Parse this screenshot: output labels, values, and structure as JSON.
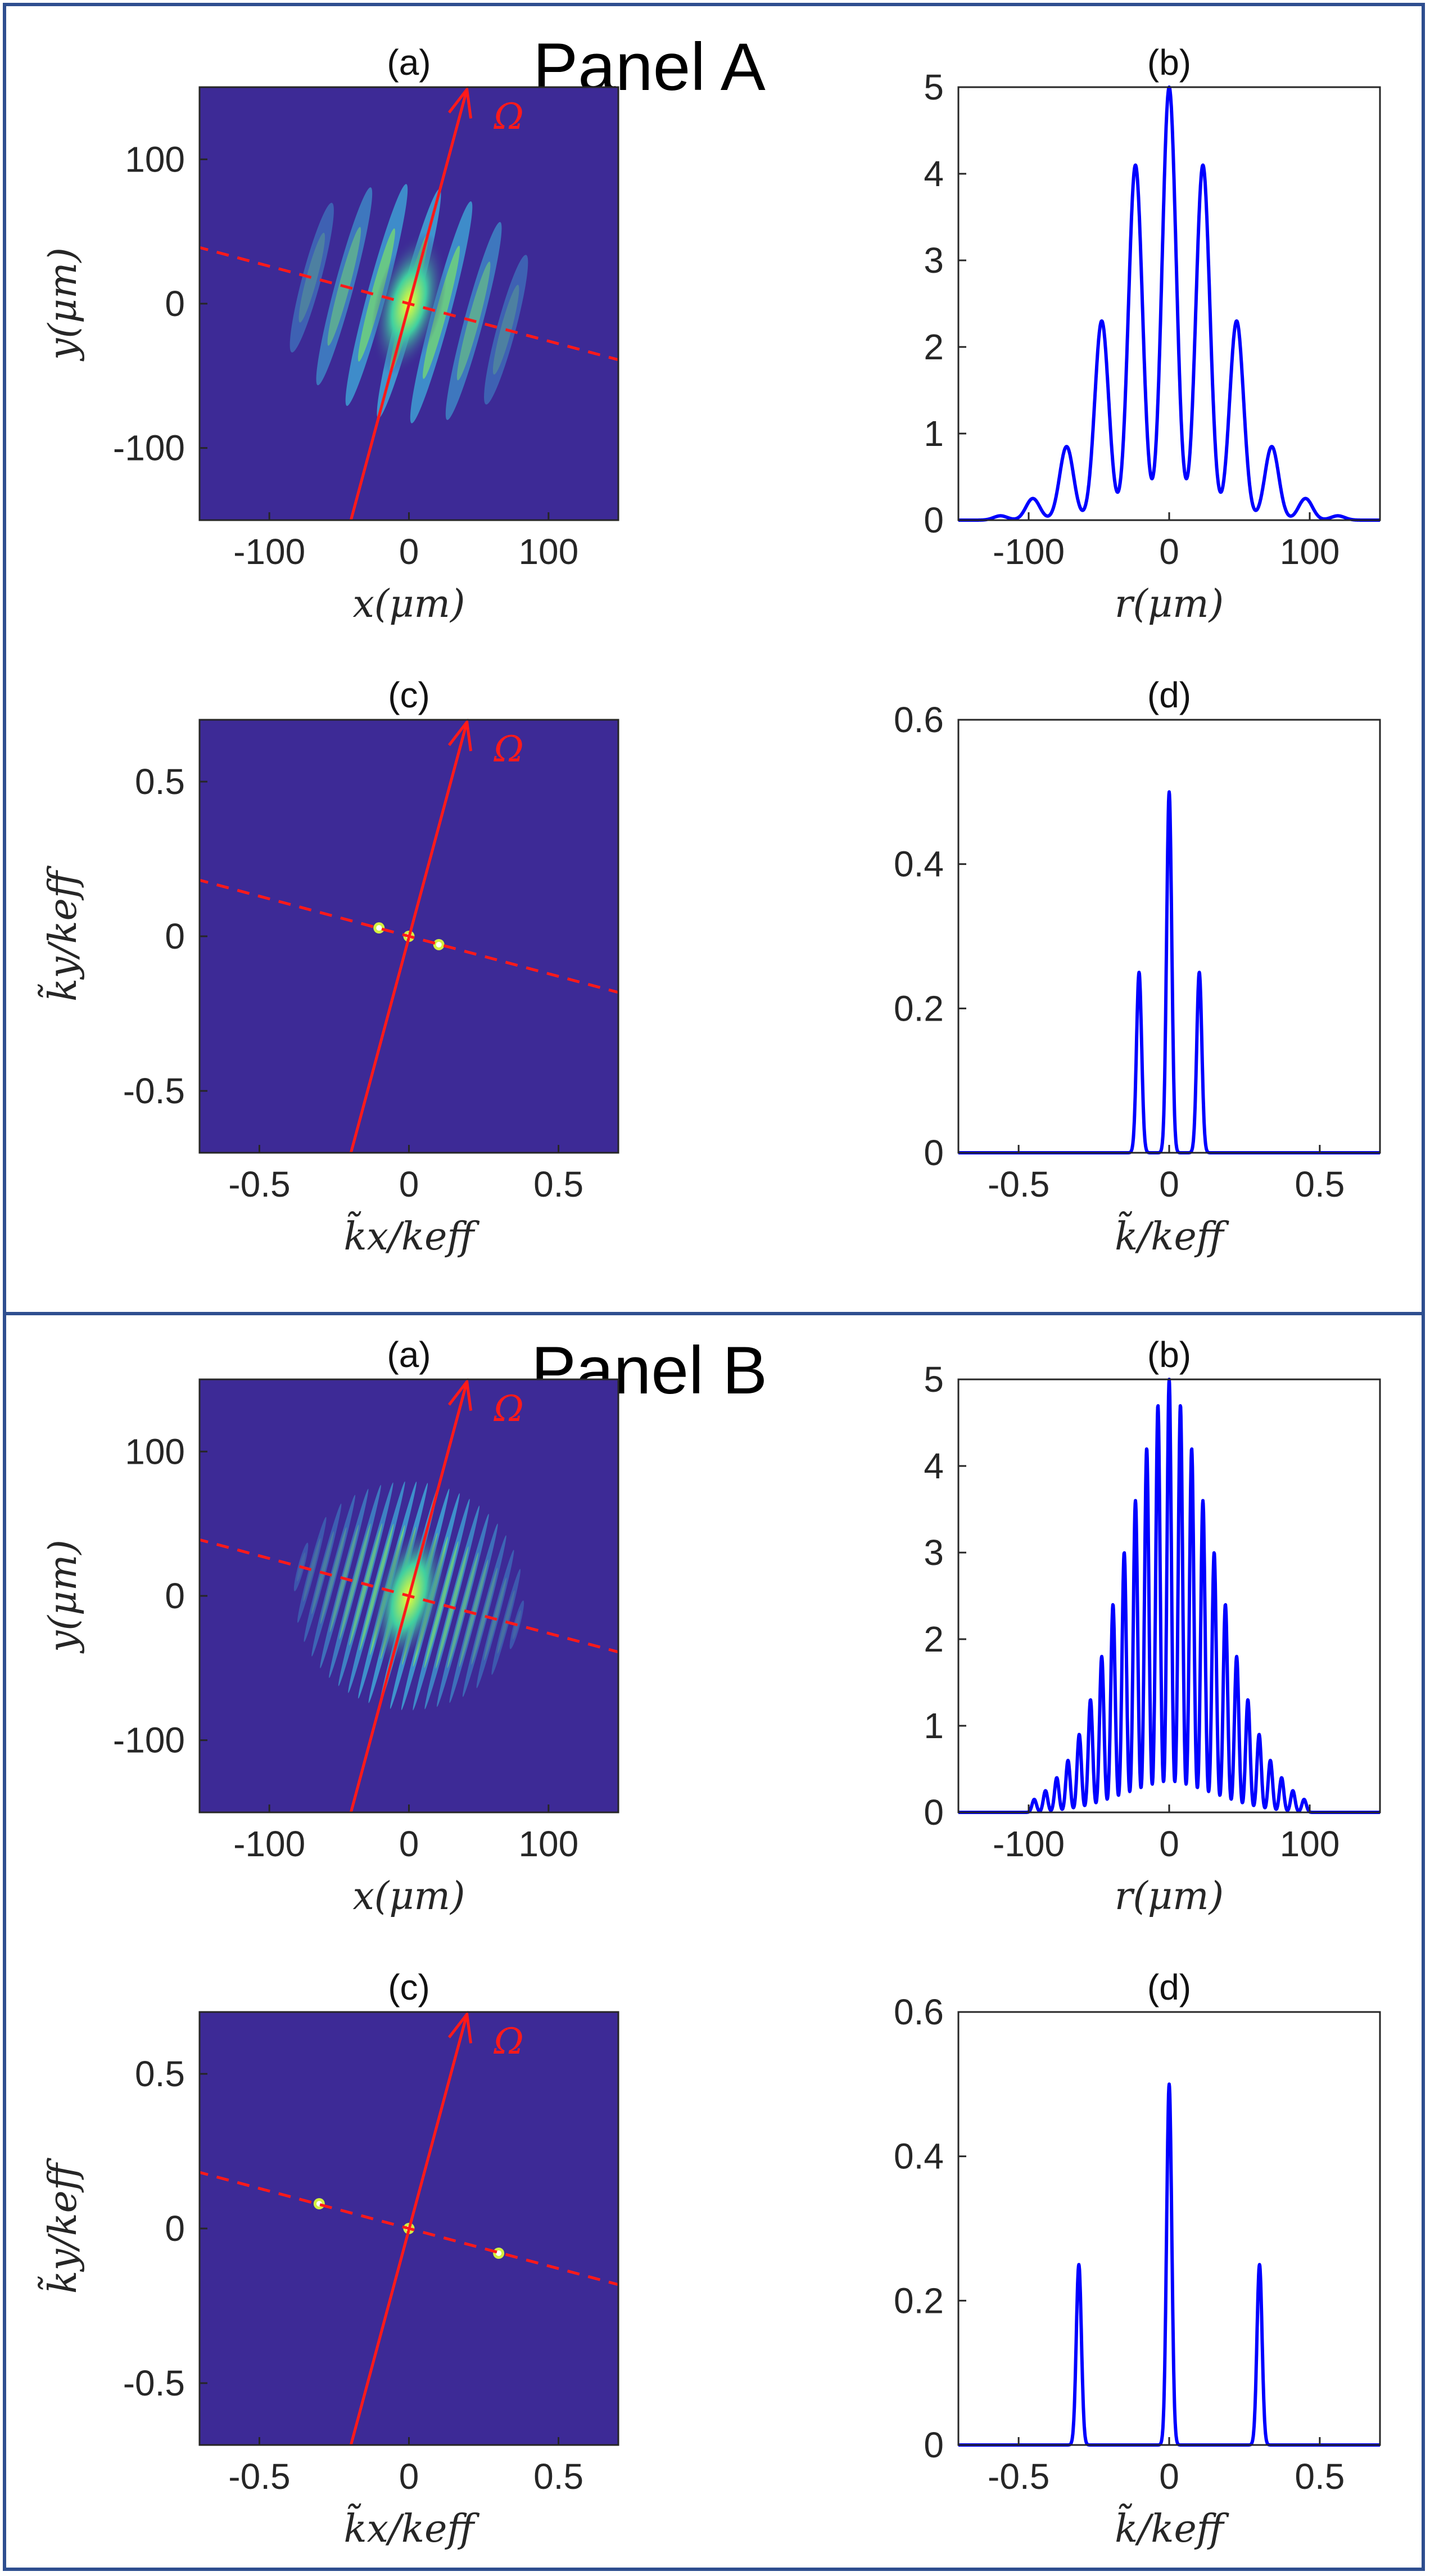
{
  "colors": {
    "frame": "#2E4E8F",
    "map_background": "#3D2A96",
    "line": "#0000FF",
    "annotation": "#FF1A1A"
  },
  "figure": {
    "panels": [
      {
        "title": "Panel A",
        "rows": [
          {
            "map": {
              "title": "(a)",
              "xlabel": "x(μm)",
              "ylabel": "y(μm)",
              "xlim": [
                -150,
                150
              ],
              "ylim": [
                -150,
                150
              ],
              "xticks": [
                -100,
                0,
                100
              ],
              "yticks": [
                -100,
                0,
                100
              ],
              "xtick_labels": [
                "-100",
                "0",
                "100"
              ],
              "ytick_labels": [
                "-100",
                "0",
                "100"
              ],
              "rotation_label": "Ω",
              "rotation_axis_angle_deg": 75,
              "fringe_count": 7,
              "fringe_spacing": 24,
              "envelope_radius": [
                95,
                85
              ],
              "peaks": []
            },
            "profile": {
              "title": "(b)",
              "xlabel": "r(μm)",
              "xlim": [
                -150,
                150
              ],
              "ylim": [
                0,
                5
              ],
              "xticks": [
                -100,
                0,
                100
              ],
              "yticks": [
                0,
                1,
                2,
                3,
                4,
                5
              ],
              "xtick_labels": [
                "-100",
                "0",
                "100"
              ],
              "ytick_labels": [
                "0",
                "1",
                "2",
                "3",
                "4",
                "5"
              ],
              "peaks": [
                [
                  -120,
                  0.05
                ],
                [
                  -97,
                  0.25
                ],
                [
                  -73,
                  0.85
                ],
                [
                  -48,
                  2.3
                ],
                [
                  -24,
                  4.1
                ],
                [
                  0,
                  5
                ],
                [
                  24,
                  4.1
                ],
                [
                  48,
                  2.3
                ],
                [
                  73,
                  0.85
                ],
                [
                  97,
                  0.25
                ],
                [
                  120,
                  0.05
                ]
              ],
              "peak_width": 7
            }
          },
          {
            "map": {
              "title": "(c)",
              "xlabel": "k̃x/keff",
              "ylabel": "k̃y/keff",
              "xlim": [
                -0.7,
                0.7
              ],
              "ylim": [
                -0.7,
                0.7
              ],
              "xticks": [
                -0.5,
                0,
                0.5
              ],
              "yticks": [
                -0.5,
                0,
                0.5
              ],
              "xtick_labels": [
                "-0.5",
                "0",
                "0.5"
              ],
              "ytick_labels": [
                "-0.5",
                "0",
                "0.5"
              ],
              "rotation_label": "Ω",
              "rotation_axis_angle_deg": 75,
              "fringe_count": 0,
              "peaks": [
                [
                  -0.1,
                  0.027
                ],
                [
                  0,
                  0
                ],
                [
                  0.1,
                  -0.027
                ]
              ]
            },
            "profile": {
              "title": "(d)",
              "xlabel": "k̃/keff",
              "xlim": [
                -0.7,
                0.7
              ],
              "ylim": [
                0,
                0.6
              ],
              "xticks": [
                -0.5,
                0,
                0.5
              ],
              "yticks": [
                0,
                0.2,
                0.4,
                0.6
              ],
              "xtick_labels": [
                "-0.5",
                "0",
                "0.5"
              ],
              "ytick_labels": [
                "0",
                "0.2",
                "0.4",
                "0.6"
              ],
              "peaks": [
                [
                  -0.1,
                  0.25
                ],
                [
                  0,
                  0.5
                ],
                [
                  0.1,
                  0.25
                ]
              ],
              "peak_width": 0.012
            }
          }
        ]
      },
      {
        "title": "Panel B",
        "rows": [
          {
            "map": {
              "title": "(a)",
              "xlabel": "x(μm)",
              "ylabel": "y(μm)",
              "xlim": [
                -150,
                150
              ],
              "ylim": [
                -150,
                150
              ],
              "xticks": [
                -100,
                0,
                100
              ],
              "yticks": [
                -100,
                0,
                100
              ],
              "xtick_labels": [
                "-100",
                "0",
                "100"
              ],
              "ytick_labels": [
                "-100",
                "0",
                "100"
              ],
              "rotation_label": "Ω",
              "rotation_axis_angle_deg": 75,
              "fringe_count": 21,
              "fringe_spacing": 8,
              "envelope_radius": [
                82,
                82
              ],
              "peaks": []
            },
            "profile": {
              "title": "(b)",
              "xlabel": "r(μm)",
              "xlim": [
                -150,
                150
              ],
              "ylim": [
                0,
                5
              ],
              "xticks": [
                -100,
                0,
                100
              ],
              "yticks": [
                0,
                1,
                2,
                3,
                4,
                5
              ],
              "xtick_labels": [
                "-100",
                "0",
                "100"
              ],
              "ytick_labels": [
                "0",
                "1",
                "2",
                "3",
                "4",
                "5"
              ],
              "peaks": [
                [
                  -96,
                  0.15
                ],
                [
                  -88,
                  0.25
                ],
                [
                  -80,
                  0.4
                ],
                [
                  -72,
                  0.6
                ],
                [
                  -64,
                  0.9
                ],
                [
                  -56,
                  1.3
                ],
                [
                  -48,
                  1.8
                ],
                [
                  -40,
                  2.4
                ],
                [
                  -32,
                  3.0
                ],
                [
                  -24,
                  3.6
                ],
                [
                  -16,
                  4.2
                ],
                [
                  -8,
                  4.7
                ],
                [
                  0,
                  5
                ],
                [
                  8,
                  4.7
                ],
                [
                  16,
                  4.2
                ],
                [
                  24,
                  3.6
                ],
                [
                  32,
                  3.0
                ],
                [
                  40,
                  2.4
                ],
                [
                  48,
                  1.8
                ],
                [
                  56,
                  1.3
                ],
                [
                  64,
                  0.9
                ],
                [
                  72,
                  0.6
                ],
                [
                  80,
                  0.4
                ],
                [
                  88,
                  0.25
                ],
                [
                  96,
                  0.15
                ]
              ],
              "peak_width": 2.2
            }
          },
          {
            "map": {
              "title": "(c)",
              "xlabel": "k̃x/keff",
              "ylabel": "k̃y/keff",
              "xlim": [
                -0.7,
                0.7
              ],
              "ylim": [
                -0.7,
                0.7
              ],
              "xticks": [
                -0.5,
                0,
                0.5
              ],
              "yticks": [
                -0.5,
                0,
                0.5
              ],
              "xtick_labels": [
                "-0.5",
                "0",
                "0.5"
              ],
              "ytick_labels": [
                "-0.5",
                "0",
                "0.5"
              ],
              "rotation_label": "Ω",
              "rotation_axis_angle_deg": 75,
              "fringe_count": 0,
              "peaks": [
                [
                  -0.3,
                  0.08
                ],
                [
                  0,
                  0
                ],
                [
                  0.3,
                  -0.08
                ]
              ]
            },
            "profile": {
              "title": "(d)",
              "xlabel": "k̃/keff",
              "xlim": [
                -0.7,
                0.7
              ],
              "ylim": [
                0,
                0.6
              ],
              "xticks": [
                -0.5,
                0,
                0.5
              ],
              "yticks": [
                0,
                0.2,
                0.4,
                0.6
              ],
              "xtick_labels": [
                "-0.5",
                "0",
                "0.5"
              ],
              "ytick_labels": [
                "0",
                "0.2",
                "0.4",
                "0.6"
              ],
              "peaks": [
                [
                  -0.3,
                  0.25
                ],
                [
                  0,
                  0.5
                ],
                [
                  0.3,
                  0.25
                ]
              ],
              "peak_width": 0.012
            }
          }
        ]
      }
    ]
  },
  "chart_data": [
    {
      "panel": "Panel A",
      "id": "(a)",
      "type": "heatmap",
      "title": "(a)",
      "xlabel": "x(μm)",
      "ylabel": "y(μm)",
      "xlim": [
        -150,
        150
      ],
      "ylim": [
        -150,
        150
      ],
      "annotation": "Ω"
    },
    {
      "panel": "Panel A",
      "id": "(b)",
      "type": "line",
      "title": "(b)",
      "xlabel": "r(μm)",
      "ylabel": "",
      "xlim": [
        -150,
        150
      ],
      "ylim": [
        0,
        5
      ],
      "x": [
        -120,
        -97,
        -73,
        -48,
        -24,
        0,
        24,
        48,
        73,
        97,
        120
      ],
      "y": [
        0.05,
        0.25,
        0.85,
        2.3,
        4.1,
        5,
        4.1,
        2.3,
        0.85,
        0.25,
        0.05
      ]
    },
    {
      "panel": "Panel A",
      "id": "(c)",
      "type": "heatmap",
      "title": "(c)",
      "xlabel": "k̃x/keff",
      "ylabel": "k̃y/keff",
      "xlim": [
        -0.7,
        0.7
      ],
      "ylim": [
        -0.7,
        0.7
      ],
      "annotation": "Ω"
    },
    {
      "panel": "Panel A",
      "id": "(d)",
      "type": "line",
      "title": "(d)",
      "xlabel": "k̃/keff",
      "ylabel": "",
      "xlim": [
        -0.7,
        0.7
      ],
      "ylim": [
        0,
        0.6
      ],
      "x": [
        -0.1,
        0,
        0.1
      ],
      "y": [
        0.25,
        0.5,
        0.25
      ]
    },
    {
      "panel": "Panel B",
      "id": "(a)",
      "type": "heatmap",
      "title": "(a)",
      "xlabel": "x(μm)",
      "ylabel": "y(μm)",
      "xlim": [
        -150,
        150
      ],
      "ylim": [
        -150,
        150
      ],
      "annotation": "Ω"
    },
    {
      "panel": "Panel B",
      "id": "(b)",
      "type": "line",
      "title": "(b)",
      "xlabel": "r(μm)",
      "ylabel": "",
      "xlim": [
        -150,
        150
      ],
      "ylim": [
        0,
        5
      ],
      "x": [
        -96,
        -88,
        -80,
        -72,
        -64,
        -56,
        -48,
        -40,
        -32,
        -24,
        -16,
        -8,
        0,
        8,
        16,
        24,
        32,
        40,
        48,
        56,
        64,
        72,
        80,
        88,
        96
      ],
      "y": [
        0.15,
        0.25,
        0.4,
        0.6,
        0.9,
        1.3,
        1.8,
        2.4,
        3.0,
        3.6,
        4.2,
        4.7,
        5,
        4.7,
        4.2,
        3.6,
        3.0,
        2.4,
        1.8,
        1.3,
        0.9,
        0.6,
        0.4,
        0.25,
        0.15
      ]
    },
    {
      "panel": "Panel B",
      "id": "(c)",
      "type": "heatmap",
      "title": "(c)",
      "xlabel": "k̃x/keff",
      "ylabel": "k̃y/keff",
      "xlim": [
        -0.7,
        0.7
      ],
      "ylim": [
        -0.7,
        0.7
      ],
      "annotation": "Ω"
    },
    {
      "panel": "Panel B",
      "id": "(d)",
      "type": "line",
      "title": "(d)",
      "xlabel": "k̃/keff",
      "ylabel": "",
      "xlim": [
        -0.7,
        0.7
      ],
      "ylim": [
        0,
        0.6
      ],
      "x": [
        -0.3,
        0,
        0.3
      ],
      "y": [
        0.25,
        0.5,
        0.25
      ]
    }
  ]
}
